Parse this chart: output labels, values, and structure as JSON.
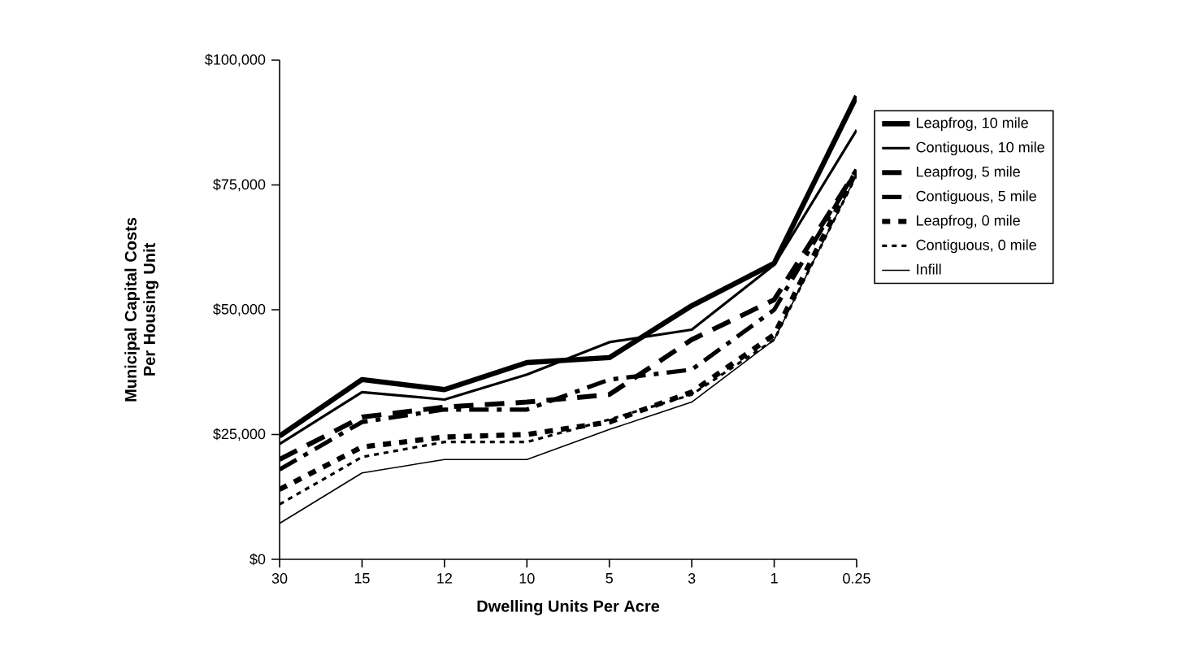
{
  "chart_data": {
    "type": "line",
    "xlabel": "Dwelling Units Per Acre",
    "ylabel": "Municipal Capital Costs Per Housing Unit",
    "categories": [
      "30",
      "15",
      "12",
      "10",
      "5",
      "3",
      "1",
      "0.25"
    ],
    "ylim": [
      0,
      100000
    ],
    "yticks": [
      {
        "value": 0,
        "label": "$0"
      },
      {
        "value": 25000,
        "label": "$25,000"
      },
      {
        "value": 50000,
        "label": "$50,000"
      },
      {
        "value": 75000,
        "label": "$75,000"
      },
      {
        "value": 100000,
        "label": "$100,000"
      }
    ],
    "legend": "right",
    "grid": false,
    "marker": "none",
    "series": [
      {
        "name": "Leapfrog, 10 mile",
        "color": "#000000",
        "line_style": "solid",
        "values": [
          24700,
          36000,
          34000,
          39400,
          40400,
          50800,
          59300,
          92800
        ]
      },
      {
        "name": "Contiguous, 10 mile",
        "color": "#000000",
        "line_style": "solid",
        "values": [
          23100,
          33500,
          32000,
          37000,
          43500,
          46000,
          59000,
          86000
        ]
      },
      {
        "name": "Leapfrog, 5 mile",
        "color": "#000000",
        "line_style": "dashed",
        "values": [
          20000,
          28500,
          30500,
          31500,
          33000,
          44000,
          52000,
          78000
        ]
      },
      {
        "name": "Contiguous, 5 mile",
        "color": "#000000",
        "line_style": "dashdot",
        "values": [
          18000,
          27500,
          30000,
          30000,
          36000,
          38000,
          50000,
          78000
        ]
      },
      {
        "name": "Leapfrog, 0 mile",
        "color": "#000000",
        "line_style": "dashed",
        "values": [
          14000,
          22500,
          24500,
          25000,
          27500,
          33500,
          45000,
          78000
        ]
      },
      {
        "name": "Contiguous, 0 mile",
        "color": "#000000",
        "line_style": "dotted",
        "values": [
          11000,
          20500,
          23500,
          23500,
          28000,
          33000,
          44000,
          77000
        ]
      },
      {
        "name": "Infill",
        "color": "#000000",
        "line_style": "solid",
        "values": [
          7200,
          17300,
          20000,
          20000,
          26000,
          31500,
          44000,
          77000
        ]
      }
    ]
  }
}
